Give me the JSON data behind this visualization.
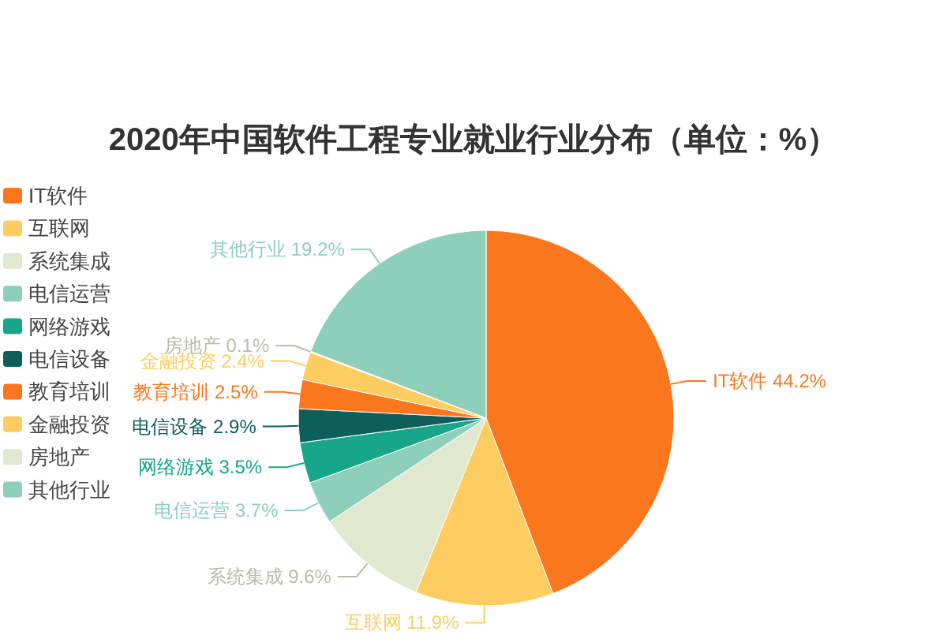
{
  "chart_data": {
    "type": "pie",
    "title": "2020年中国软件工程专业就业行业分布（单位：%）",
    "categories": [
      "IT软件",
      "互联网",
      "系统集成",
      "电信运营",
      "网络游戏",
      "电信设备",
      "教育培训",
      "金融投资",
      "房地产",
      "其他行业"
    ],
    "values": [
      44.2,
      11.9,
      9.6,
      3.7,
      3.5,
      2.9,
      2.5,
      2.4,
      0.1,
      19.2
    ],
    "colors": [
      "#fb771e",
      "#fdcd62",
      "#e1e8d0",
      "#8dcfbb",
      "#17a689",
      "#0e5f5c",
      "#fb771e",
      "#fdcd62",
      "#e1e8d0",
      "#8dcfbb"
    ],
    "value_labels": [
      "IT软件 44.2%",
      "互联网 11.9%",
      "系统集成 9.6%",
      "电信运营 3.7%",
      "网络游戏 3.5%",
      "电信设备 2.9%",
      "教育培训 2.5%",
      "金融投资 2.4%",
      "房地产 0.1%",
      "其他行业 19.2%"
    ],
    "legend": "left"
  }
}
